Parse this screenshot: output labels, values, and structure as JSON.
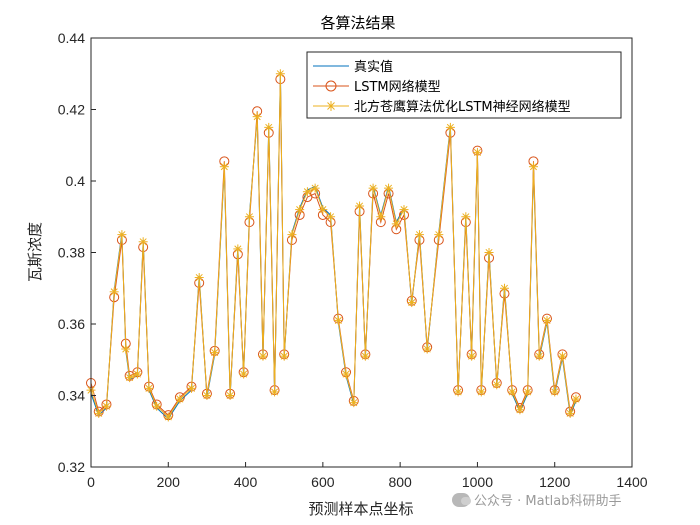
{
  "chart_data": {
    "type": "line",
    "title": "各算法结果",
    "xlabel": "预测样本点坐标",
    "ylabel": "瓦斯浓度",
    "xlim": [
      0,
      1400
    ],
    "ylim": [
      0.32,
      0.44
    ],
    "xticks": [
      0,
      200,
      400,
      600,
      800,
      1000,
      1200,
      1400
    ],
    "yticks": [
      0.32,
      0.34,
      0.36,
      0.38,
      0.4,
      0.42,
      0.44
    ],
    "xtick_labels": [
      "0",
      "200",
      "400",
      "600",
      "800",
      "1000",
      "1200",
      "1400"
    ],
    "ytick_labels": [
      "0.32",
      "0.34",
      "0.36",
      "0.38",
      "0.4",
      "0.42",
      "0.44"
    ],
    "grid": false,
    "legend_position": "top-right",
    "x": [
      0,
      20,
      40,
      60,
      80,
      90,
      100,
      120,
      135,
      150,
      170,
      200,
      230,
      260,
      280,
      300,
      320,
      345,
      360,
      380,
      395,
      410,
      430,
      445,
      460,
      475,
      490,
      500,
      520,
      540,
      560,
      580,
      600,
      620,
      640,
      660,
      680,
      695,
      710,
      730,
      750,
      770,
      790,
      810,
      830,
      850,
      870,
      900,
      930,
      950,
      970,
      985,
      1000,
      1010,
      1030,
      1050,
      1070,
      1090,
      1110,
      1130,
      1145,
      1160,
      1180,
      1200,
      1220,
      1240,
      1255
    ],
    "series": [
      {
        "name": "真实值",
        "color": "#0072BD",
        "marker": "none",
        "values": [
          0.3405,
          0.3345,
          0.3365,
          0.3695,
          0.3855,
          0.3525,
          0.3445,
          0.3455,
          0.3835,
          0.3415,
          0.3365,
          0.3335,
          0.3385,
          0.3415,
          0.3735,
          0.3395,
          0.3515,
          0.4035,
          0.3395,
          0.3815,
          0.3455,
          0.3905,
          0.4175,
          0.3505,
          0.4155,
          0.3405,
          0.4305,
          0.3505,
          0.3855,
          0.3925,
          0.3975,
          0.3985,
          0.3925,
          0.3905,
          0.3605,
          0.3455,
          0.3375,
          0.3935,
          0.3505,
          0.3985,
          0.3905,
          0.3985,
          0.3885,
          0.3925,
          0.3655,
          0.3855,
          0.3525,
          0.3855,
          0.4155,
          0.3405,
          0.3905,
          0.3505,
          0.4075,
          0.3405,
          0.3805,
          0.3425,
          0.3705,
          0.3405,
          0.3355,
          0.3405,
          0.4035,
          0.3505,
          0.3605,
          0.3405,
          0.3505,
          0.3345,
          0.3385
        ]
      },
      {
        "name": "LSTM网络模型",
        "color": "#D95319",
        "marker": "circle",
        "values": [
          0.3435,
          0.3355,
          0.3375,
          0.3675,
          0.3835,
          0.3545,
          0.3455,
          0.3465,
          0.3815,
          0.3425,
          0.3375,
          0.3345,
          0.3395,
          0.3425,
          0.3715,
          0.3405,
          0.3525,
          0.4055,
          0.3405,
          0.3795,
          0.3465,
          0.3885,
          0.4195,
          0.3515,
          0.4135,
          0.3415,
          0.4285,
          0.3515,
          0.3835,
          0.3905,
          0.3955,
          0.3965,
          0.3905,
          0.3885,
          0.3615,
          0.3465,
          0.3385,
          0.3915,
          0.3515,
          0.3965,
          0.3885,
          0.3965,
          0.3865,
          0.3905,
          0.3665,
          0.3835,
          0.3535,
          0.3835,
          0.4135,
          0.3415,
          0.3885,
          0.3515,
          0.4085,
          0.3415,
          0.3785,
          0.3435,
          0.3685,
          0.3415,
          0.3365,
          0.3415,
          0.4055,
          0.3515,
          0.3615,
          0.3415,
          0.3515,
          0.3355,
          0.3395
        ]
      },
      {
        "name": "北方苍鹰算法优化LSTM神经网络模型",
        "color": "#EDB120",
        "marker": "asterisk",
        "values": [
          0.3415,
          0.335,
          0.337,
          0.369,
          0.385,
          0.353,
          0.345,
          0.346,
          0.383,
          0.342,
          0.337,
          0.334,
          0.339,
          0.342,
          0.373,
          0.34,
          0.352,
          0.404,
          0.34,
          0.381,
          0.346,
          0.39,
          0.418,
          0.351,
          0.415,
          0.341,
          0.43,
          0.351,
          0.385,
          0.392,
          0.397,
          0.398,
          0.392,
          0.39,
          0.361,
          0.346,
          0.338,
          0.393,
          0.351,
          0.398,
          0.39,
          0.398,
          0.388,
          0.392,
          0.366,
          0.385,
          0.353,
          0.385,
          0.415,
          0.341,
          0.39,
          0.351,
          0.408,
          0.341,
          0.38,
          0.343,
          0.37,
          0.341,
          0.336,
          0.341,
          0.404,
          0.351,
          0.361,
          0.341,
          0.351,
          0.335,
          0.339
        ]
      }
    ]
  },
  "watermark": {
    "text": "公众号 · Matlab科研助手",
    "icon": "wechat-icon"
  }
}
